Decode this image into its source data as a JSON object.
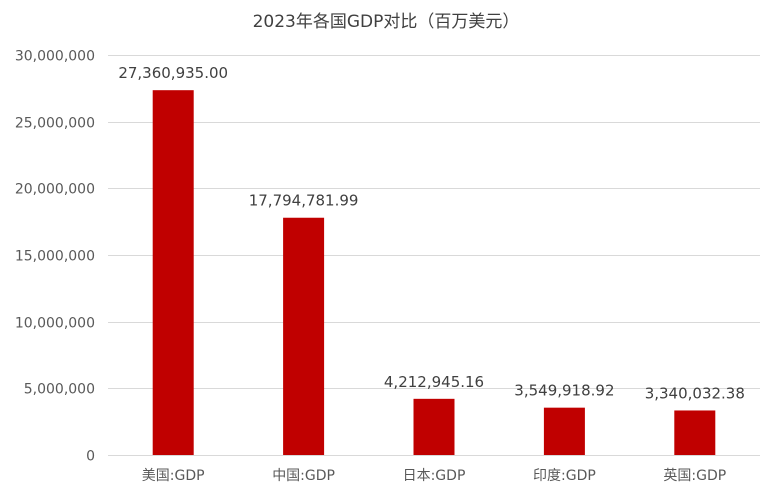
{
  "chart_data": {
    "type": "bar",
    "title": "2023年各国GDP对比（百万美元）",
    "categories": [
      "美国:GDP",
      "中国:GDP",
      "日本:GDP",
      "印度:GDP",
      "英国:GDP"
    ],
    "values": [
      27360935.0,
      17794781.99,
      4212945.16,
      3549918.92,
      3340032.38
    ],
    "data_labels": [
      "27,360,935.00",
      "17,794,781.99",
      "4,212,945.16",
      "3,549,918.92",
      "3,340,032.38"
    ],
    "ylim": [
      0,
      30000000
    ],
    "yticks": [
      0,
      5000000,
      10000000,
      15000000,
      20000000,
      25000000,
      30000000
    ],
    "ytick_labels": [
      "0",
      "5,000,000",
      "10,000,000",
      "15,000,000",
      "20,000,000",
      "25,000,000",
      "30,000,000"
    ],
    "grid": true,
    "legend": "none",
    "bar_color": "#C00000",
    "grid_color": "#D9D9D9"
  }
}
